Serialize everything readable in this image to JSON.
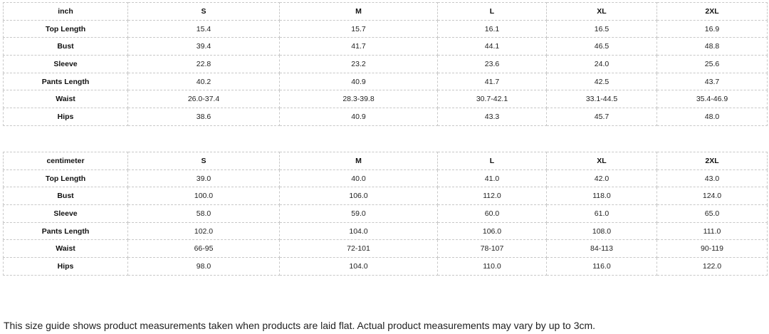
{
  "tables": [
    {
      "unit": "inch",
      "sizes": [
        "S",
        "M",
        "L",
        "XL",
        "2XL"
      ],
      "rows": [
        {
          "label": "Top Length",
          "values": [
            "15.4",
            "15.7",
            "16.1",
            "16.5",
            "16.9"
          ]
        },
        {
          "label": "Bust",
          "values": [
            "39.4",
            "41.7",
            "44.1",
            "46.5",
            "48.8"
          ]
        },
        {
          "label": "Sleeve",
          "values": [
            "22.8",
            "23.2",
            "23.6",
            "24.0",
            "25.6"
          ]
        },
        {
          "label": "Pants Length",
          "values": [
            "40.2",
            "40.9",
            "41.7",
            "42.5",
            "43.7"
          ]
        },
        {
          "label": "Waist",
          "values": [
            "26.0-37.4",
            "28.3-39.8",
            "30.7-42.1",
            "33.1-44.5",
            "35.4-46.9"
          ]
        },
        {
          "label": "Hips",
          "values": [
            "38.6",
            "40.9",
            "43.3",
            "45.7",
            "48.0"
          ]
        }
      ]
    },
    {
      "unit": "centimeter",
      "sizes": [
        "S",
        "M",
        "L",
        "XL",
        "2XL"
      ],
      "rows": [
        {
          "label": "Top Length",
          "values": [
            "39.0",
            "40.0",
            "41.0",
            "42.0",
            "43.0"
          ]
        },
        {
          "label": "Bust",
          "values": [
            "100.0",
            "106.0",
            "112.0",
            "118.0",
            "124.0"
          ]
        },
        {
          "label": "Sleeve",
          "values": [
            "58.0",
            "59.0",
            "60.0",
            "61.0",
            "65.0"
          ]
        },
        {
          "label": "Pants Length",
          "values": [
            "102.0",
            "104.0",
            "106.0",
            "108.0",
            "111.0"
          ]
        },
        {
          "label": "Waist",
          "values": [
            "66-95",
            "72-101",
            "78-107",
            "84-113",
            "90-119"
          ]
        },
        {
          "label": "Hips",
          "values": [
            "98.0",
            "104.0",
            "110.0",
            "116.0",
            "122.0"
          ]
        }
      ]
    }
  ],
  "note": "This size guide shows product measurements taken when products are laid flat. Actual product measurements may vary by up to 3cm."
}
